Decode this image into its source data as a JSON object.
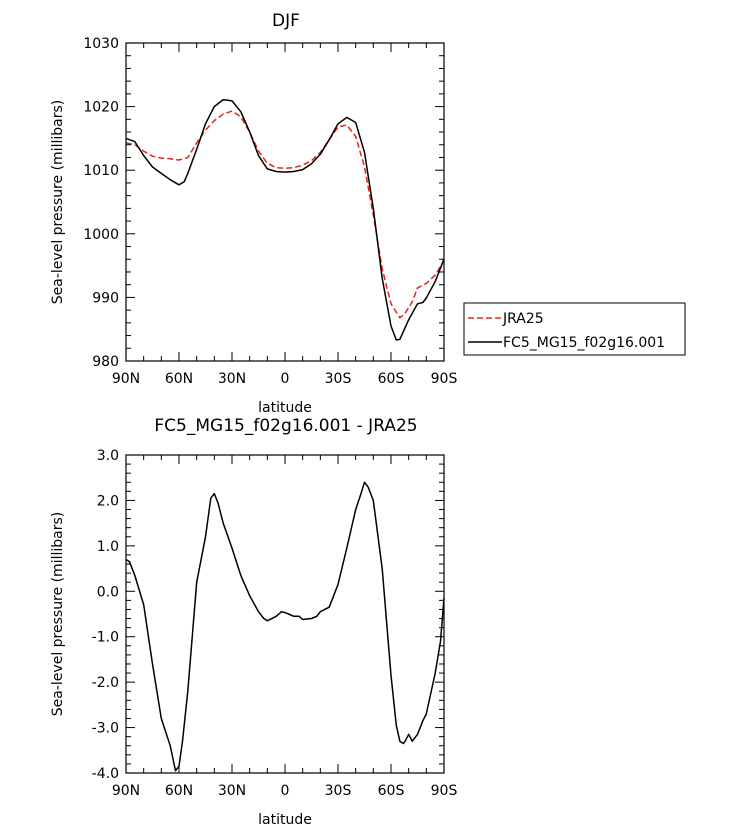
{
  "chart_data": [
    {
      "type": "line",
      "title": "DJF",
      "xlabel": "latitude",
      "ylabel": "Sea-level pressure (millibars)",
      "xlim": [
        90,
        -90
      ],
      "ylim": [
        980,
        1030
      ],
      "x_ticks": [
        90,
        60,
        30,
        0,
        -30,
        -60,
        -90
      ],
      "x_tick_labels": [
        "90N",
        "60N",
        "30N",
        "0",
        "30S",
        "60S",
        "90S"
      ],
      "y_ticks": [
        980,
        990,
        1000,
        1010,
        1020,
        1030
      ],
      "y_tick_labels": [
        "980",
        "990",
        "1000",
        "1010",
        "1020",
        "1030"
      ],
      "grid": false,
      "legend_position": "right",
      "series": [
        {
          "name": "JRA25",
          "color": "#e8231f",
          "dash": "dashed",
          "x": [
            90,
            85,
            80,
            75,
            70,
            65,
            60,
            55,
            50,
            45,
            40,
            35,
            30,
            25,
            20,
            15,
            10,
            5,
            0,
            -5,
            -10,
            -15,
            -20,
            -25,
            -30,
            -35,
            -40,
            -45,
            -50,
            -55,
            -60,
            -65,
            -68,
            -72,
            -75,
            -80,
            -85,
            -90
          ],
          "y": [
            1014.3,
            1014.0,
            1013.0,
            1012.2,
            1011.9,
            1011.8,
            1011.6,
            1012.0,
            1014.3,
            1016.3,
            1017.8,
            1018.8,
            1019.3,
            1018.4,
            1016.0,
            1013.0,
            1011.1,
            1010.4,
            1010.3,
            1010.4,
            1010.8,
            1011.5,
            1012.8,
            1014.8,
            1016.8,
            1017.1,
            1015.3,
            1010.5,
            1003.0,
            994.5,
            989.0,
            986.8,
            987.5,
            989.3,
            991.5,
            992.2,
            993.5,
            995.8
          ]
        },
        {
          "name": "FC5_MG15_f02g16.001",
          "color": "#000000",
          "dash": "solid",
          "x": [
            90,
            85,
            80,
            75,
            70,
            65,
            60,
            57,
            55,
            50,
            45,
            40,
            35,
            30,
            25,
            20,
            15,
            10,
            5,
            0,
            -5,
            -10,
            -15,
            -20,
            -25,
            -30,
            -35,
            -40,
            -45,
            -50,
            -55,
            -60,
            -63,
            -65,
            -70,
            -75,
            -78,
            -80,
            -85,
            -90
          ],
          "y": [
            1015.0,
            1014.5,
            1012.3,
            1010.5,
            1009.5,
            1008.5,
            1007.7,
            1008.2,
            1009.5,
            1013.3,
            1017.3,
            1020.0,
            1021.1,
            1020.9,
            1019.2,
            1016.0,
            1012.3,
            1010.2,
            1009.8,
            1009.7,
            1009.8,
            1010.1,
            1011.0,
            1012.5,
            1014.8,
            1017.3,
            1018.3,
            1017.5,
            1012.8,
            1004.0,
            993.0,
            985.5,
            983.3,
            983.4,
            986.5,
            989.0,
            989.2,
            989.9,
            992.5,
            996.0
          ]
        }
      ]
    },
    {
      "type": "line",
      "title": "FC5_MG15_f02g16.001 - JRA25",
      "xlabel": "latitude",
      "ylabel": "Sea-level pressure (millibars)",
      "xlim": [
        90,
        -90
      ],
      "ylim": [
        -4.0,
        3.0
      ],
      "x_ticks": [
        90,
        60,
        30,
        0,
        -30,
        -60,
        -90
      ],
      "x_tick_labels": [
        "90N",
        "60N",
        "30N",
        "0",
        "30S",
        "60S",
        "90S"
      ],
      "y_ticks": [
        -4,
        -3,
        -2,
        -1,
        0,
        1,
        2,
        3
      ],
      "y_tick_labels": [
        "-4.0",
        "-3.0",
        "-2.0",
        "-1.0",
        "0.0",
        "1.0",
        "2.0",
        "3.0"
      ],
      "grid": false,
      "series": [
        {
          "color": "#000000",
          "dash": "solid",
          "x": [
            90,
            88,
            85,
            80,
            75,
            70,
            65,
            62,
            60,
            58,
            55,
            50,
            45,
            42,
            40,
            38,
            35,
            30,
            25,
            20,
            15,
            12,
            10,
            5,
            2,
            0,
            -2,
            -5,
            -8,
            -10,
            -15,
            -18,
            -20,
            -25,
            -30,
            -35,
            -40,
            -43,
            -45,
            -47,
            -50,
            -55,
            -60,
            -63,
            -65,
            -67,
            -68,
            -70,
            -72,
            -75,
            -78,
            -80,
            -85,
            -88,
            -90
          ],
          "y": [
            0.7,
            0.65,
            0.35,
            -0.3,
            -1.6,
            -2.8,
            -3.4,
            -3.95,
            -3.85,
            -3.3,
            -2.2,
            0.2,
            1.2,
            2.05,
            2.15,
            1.95,
            1.5,
            0.95,
            0.35,
            -0.1,
            -0.45,
            -0.6,
            -0.65,
            -0.55,
            -0.45,
            -0.47,
            -0.5,
            -0.55,
            -0.55,
            -0.62,
            -0.6,
            -0.55,
            -0.45,
            -0.35,
            0.15,
            0.95,
            1.8,
            2.15,
            2.4,
            2.3,
            2.0,
            0.5,
            -1.85,
            -2.95,
            -3.3,
            -3.35,
            -3.3,
            -3.15,
            -3.3,
            -3.15,
            -2.85,
            -2.7,
            -1.8,
            -1.1,
            -0.15
          ]
        }
      ]
    }
  ]
}
